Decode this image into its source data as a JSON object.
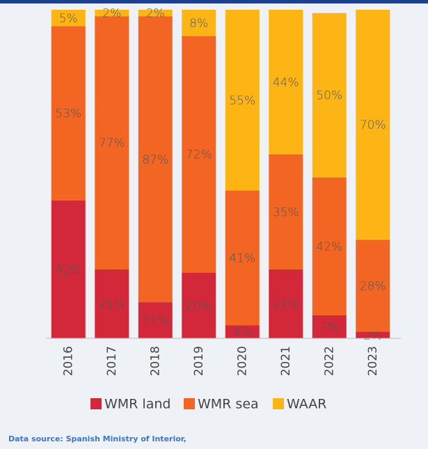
{
  "chart_data": {
    "type": "stacked-bar",
    "categories": [
      "2016",
      "2017",
      "2018",
      "2019",
      "2020",
      "2021",
      "2022",
      "2023"
    ],
    "series": [
      {
        "name": "WMR land",
        "color": "#d3283a",
        "values": [
          42,
          21,
          11,
          20,
          4,
          21,
          7,
          2
        ],
        "value_labels": [
          "42%",
          "21%",
          "11%",
          "20%",
          "4%",
          "21%",
          "7%",
          "2%"
        ]
      },
      {
        "name": "WMR sea",
        "color": "#f26522",
        "values": [
          53,
          77,
          87,
          72,
          41,
          35,
          42,
          28
        ],
        "value_labels": [
          "53%",
          "77%",
          "87%",
          "72%",
          "41%",
          "35%",
          "42%",
          "28%"
        ]
      },
      {
        "name": "WAAR",
        "color": "#fdb515",
        "values": [
          5,
          2,
          2,
          8,
          55,
          44,
          50,
          70
        ],
        "value_labels": [
          "5%",
          "2%",
          "2%",
          "8%",
          "55%",
          "44%",
          "50%",
          "70%"
        ]
      }
    ],
    "ylim": [
      0,
      100
    ],
    "source": "Data source: Spanish Ministry of Interior,"
  }
}
